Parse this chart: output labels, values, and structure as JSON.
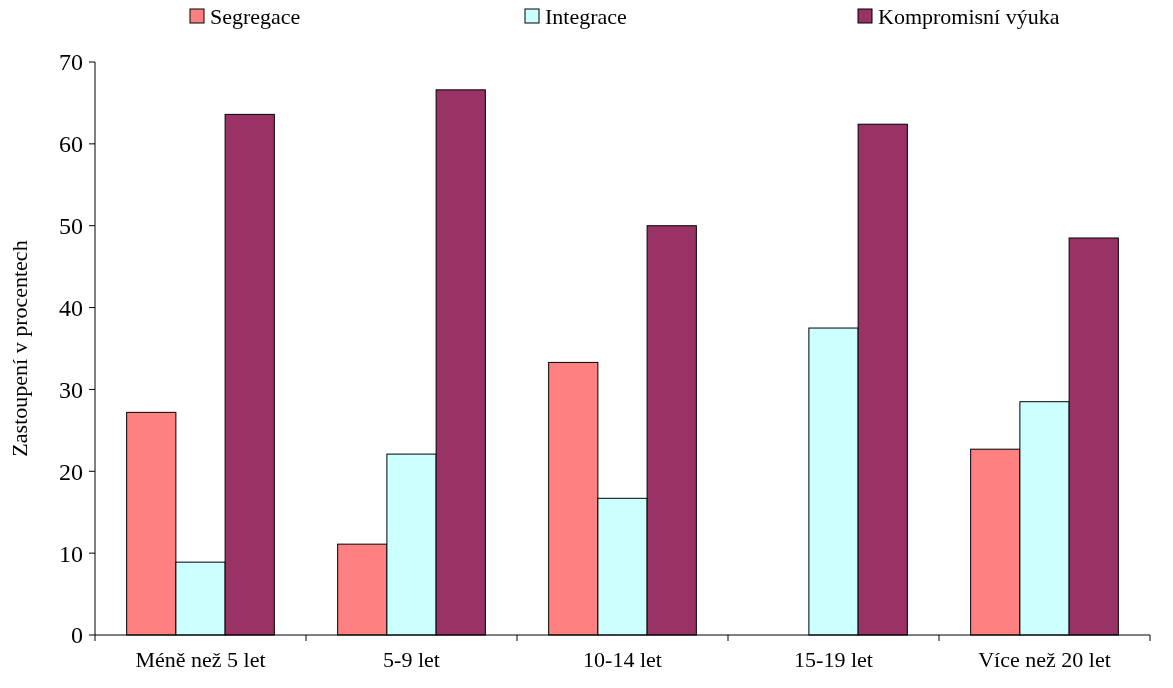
{
  "chart_data": {
    "type": "bar",
    "ylabel": "Zastoupení v procentech",
    "categories": [
      "Méně než 5 let",
      "5-9 let",
      "10-14 let",
      "15-19 let",
      "Více než 20 let"
    ],
    "series": [
      {
        "name": "Segregace",
        "color": "#ff8080",
        "values": [
          27.2,
          11.1,
          33.3,
          0,
          22.7
        ]
      },
      {
        "name": "Integrace",
        "color": "#ccffff",
        "values": [
          8.9,
          22.1,
          16.7,
          37.5,
          28.5
        ]
      },
      {
        "name": "Kompromisní výuka",
        "color": "#993366",
        "values": [
          63.6,
          66.6,
          50.0,
          62.4,
          48.5
        ]
      }
    ],
    "ylim": [
      0,
      70
    ],
    "yticks": [
      0,
      10,
      20,
      30,
      40,
      50,
      60,
      70
    ],
    "grid": false,
    "legend": "top"
  }
}
